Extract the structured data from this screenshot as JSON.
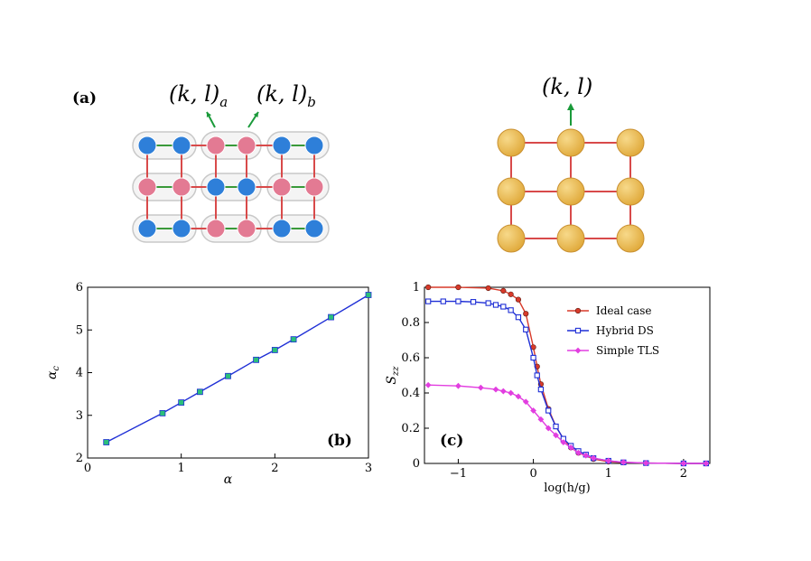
{
  "panels": {
    "a": {
      "label": "(a)",
      "site_label_a": "(k, l)",
      "site_sub_a": "a",
      "site_label_b": "(k, l)",
      "site_sub_b": "b",
      "site_label_right": "(k, l)",
      "colors": {
        "blue": "#2e7fd9",
        "pink": "#e37a93",
        "gold": "#e0a93a",
        "red_bond": "#d84a4a",
        "green_bond": "#3a9a3a",
        "arrow": "#1a9a3a"
      }
    },
    "b": {
      "label": "(b)"
    },
    "c": {
      "label": "(c)"
    }
  },
  "chart_data": [
    {
      "type": "scatter",
      "panel": "b",
      "xlabel": "α",
      "ylabel": "α_c",
      "ylabel_main": "α",
      "ylabel_sub": "c",
      "xlim": [
        0,
        3
      ],
      "ylim": [
        2,
        6
      ],
      "xticks": [
        0,
        1,
        2,
        3
      ],
      "yticks": [
        2,
        3,
        4,
        5,
        6
      ],
      "line_color": "#1f2fd6",
      "marker_color": "#2bbf7a",
      "series": [
        {
          "x": [
            0.2,
            0.8,
            1.0,
            1.2,
            1.5,
            1.8,
            2.0,
            2.2,
            2.6,
            3.0
          ],
          "y": [
            2.37,
            3.05,
            3.3,
            3.55,
            3.92,
            4.3,
            4.53,
            4.78,
            5.3,
            5.82
          ]
        }
      ]
    },
    {
      "type": "line",
      "panel": "c",
      "xlabel": "log(h/g)",
      "ylabel": "S_zz",
      "ylabel_main": "S",
      "ylabel_sub": "zz",
      "xlim": [
        -1.45,
        2.35
      ],
      "ylim": [
        0,
        1
      ],
      "xticks": [
        -1,
        0,
        1,
        2
      ],
      "yticks": [
        0,
        0.2,
        0.4,
        0.6,
        0.8,
        1
      ],
      "legend_position": "top-right",
      "series": [
        {
          "name": "Ideal case",
          "color": "#d83a2a",
          "marker": "circle",
          "x": [
            -1.4,
            -1.0,
            -0.6,
            -0.4,
            -0.3,
            -0.2,
            -0.1,
            0.0,
            0.05,
            0.1,
            0.2,
            0.3,
            0.4,
            0.5,
            0.6,
            0.8,
            1.0,
            1.2,
            1.5,
            2.0,
            2.3
          ],
          "y": [
            1.0,
            1.0,
            0.995,
            0.98,
            0.96,
            0.93,
            0.85,
            0.66,
            0.55,
            0.45,
            0.31,
            0.21,
            0.14,
            0.09,
            0.06,
            0.025,
            0.01,
            0.005,
            0.002,
            0.0,
            0.0
          ]
        },
        {
          "name": "Hybrid DS",
          "color": "#1f2fd6",
          "marker": "square",
          "x": [
            -1.4,
            -1.2,
            -1.0,
            -0.8,
            -0.6,
            -0.5,
            -0.4,
            -0.3,
            -0.2,
            -0.1,
            0.0,
            0.05,
            0.1,
            0.2,
            0.3,
            0.4,
            0.5,
            0.6,
            0.7,
            0.8,
            1.0,
            1.2,
            1.5,
            2.0,
            2.3
          ],
          "y": [
            0.92,
            0.92,
            0.92,
            0.917,
            0.91,
            0.9,
            0.89,
            0.87,
            0.83,
            0.76,
            0.6,
            0.5,
            0.42,
            0.3,
            0.21,
            0.14,
            0.1,
            0.07,
            0.05,
            0.03,
            0.015,
            0.006,
            0.002,
            0.0,
            0.0
          ]
        },
        {
          "name": "Simple TLS",
          "color": "#e23ee0",
          "marker": "diamond",
          "x": [
            -1.4,
            -1.0,
            -0.7,
            -0.5,
            -0.4,
            -0.3,
            -0.2,
            -0.1,
            0.0,
            0.1,
            0.2,
            0.3,
            0.4,
            0.5,
            0.6,
            0.7,
            0.8,
            1.0,
            1.2,
            1.5,
            2.0,
            2.3
          ],
          "y": [
            0.445,
            0.44,
            0.43,
            0.42,
            0.41,
            0.4,
            0.38,
            0.35,
            0.3,
            0.25,
            0.2,
            0.16,
            0.12,
            0.09,
            0.06,
            0.045,
            0.03,
            0.015,
            0.007,
            0.002,
            0.0,
            0.0
          ]
        }
      ]
    }
  ]
}
